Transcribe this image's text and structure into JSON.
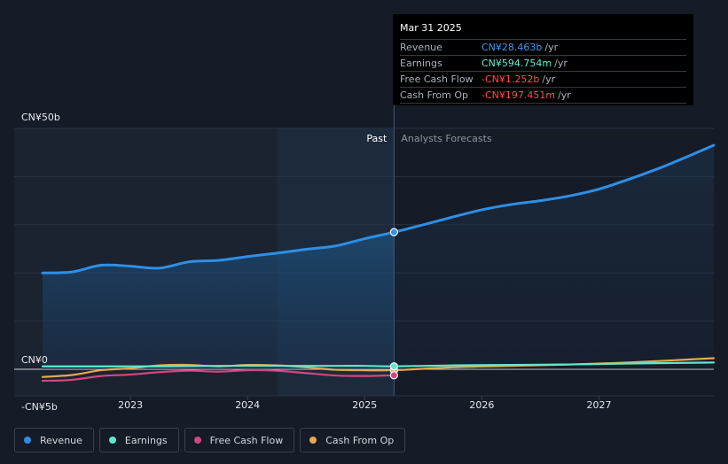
{
  "tooltip": {
    "date": "Mar 31 2025",
    "rows": [
      {
        "label": "Revenue",
        "value": "CN¥28.463b",
        "unit": "/yr",
        "color": "#3d9bf0"
      },
      {
        "label": "Earnings",
        "value": "CN¥594.754m",
        "unit": "/yr",
        "color": "#5ef0d0"
      },
      {
        "label": "Free Cash Flow",
        "value": "-CN¥1.252b",
        "unit": "/yr",
        "color": "#ff4d4d"
      },
      {
        "label": "Cash From Op",
        "value": "-CN¥197.451m",
        "unit": "/yr",
        "color": "#ff4d4d"
      }
    ]
  },
  "legend": [
    {
      "label": "Revenue",
      "color": "#2e8fe6"
    },
    {
      "label": "Earnings",
      "color": "#5ee8cc"
    },
    {
      "label": "Free Cash Flow",
      "color": "#d2467f"
    },
    {
      "label": "Cash From Op",
      "color": "#e6a84e"
    }
  ],
  "chart_data": {
    "type": "line",
    "title": "",
    "past_label": "Past",
    "forecast_label": "Analysts Forecasts",
    "y_tick_labels": [
      "CN¥50b",
      "CN¥0",
      "-CN¥5b"
    ],
    "y_ticks": [
      50,
      0,
      -5
    ],
    "ylim": [
      -5,
      50
    ],
    "xlim": [
      2022.25,
      2027.98
    ],
    "x_ticks": [
      2023,
      2024,
      2025,
      2026,
      2027
    ],
    "x_tick_labels": [
      "2023",
      "2024",
      "2025",
      "2026",
      "2027"
    ],
    "divider_x": 2025.25,
    "past_shade_start": 2024.25,
    "grid": true,
    "legend_position": "bottom-left",
    "series": [
      {
        "name": "Revenue",
        "color": "#2e8fe6",
        "x": [
          2022.25,
          2022.5,
          2022.75,
          2023.0,
          2023.25,
          2023.5,
          2023.75,
          2024.0,
          2024.25,
          2024.5,
          2024.75,
          2025.0,
          2025.25,
          2025.5,
          2025.75,
          2026.0,
          2026.25,
          2026.5,
          2026.75,
          2027.0,
          2027.25,
          2027.5,
          2027.75,
          2027.98
        ],
        "y": [
          20.0,
          20.2,
          21.6,
          21.4,
          21.0,
          22.3,
          22.6,
          23.4,
          24.1,
          24.9,
          25.6,
          27.1,
          28.463,
          30.0,
          31.6,
          33.1,
          34.2,
          35.0,
          36.0,
          37.4,
          39.4,
          41.6,
          44.1,
          46.5
        ]
      },
      {
        "name": "Earnings",
        "color": "#5ee8cc",
        "x": [
          2022.25,
          2022.75,
          2023.25,
          2023.75,
          2024.25,
          2024.75,
          2025.0,
          2025.25,
          2025.75,
          2026.25,
          2026.75,
          2027.25,
          2027.98
        ],
        "y": [
          0.6,
          0.6,
          0.6,
          0.7,
          0.7,
          0.7,
          0.7,
          0.594754,
          0.8,
          0.9,
          1.0,
          1.2,
          1.4
        ]
      },
      {
        "name": "Free Cash Flow",
        "color": "#d2467f",
        "x": [
          2022.25,
          2022.5,
          2022.75,
          2023.0,
          2023.25,
          2023.5,
          2023.75,
          2024.0,
          2024.25,
          2024.5,
          2024.75,
          2025.0,
          2025.25
        ],
        "y": [
          -2.4,
          -2.2,
          -1.4,
          -1.1,
          -0.6,
          -0.3,
          -0.5,
          -0.2,
          -0.3,
          -0.8,
          -1.3,
          -1.4,
          -1.252
        ]
      },
      {
        "name": "Cash From Op",
        "color": "#e6a84e",
        "x": [
          2022.25,
          2022.5,
          2022.75,
          2023.0,
          2023.25,
          2023.5,
          2023.75,
          2024.0,
          2024.25,
          2024.5,
          2024.75,
          2025.0,
          2025.25,
          2025.75,
          2026.25,
          2026.75,
          2027.25,
          2027.98
        ],
        "y": [
          -1.6,
          -1.2,
          -0.2,
          0.2,
          0.8,
          0.9,
          0.6,
          0.9,
          0.8,
          0.4,
          -0.1,
          -0.2,
          -0.197451,
          0.4,
          0.7,
          1.0,
          1.4,
          2.3
        ]
      }
    ]
  }
}
